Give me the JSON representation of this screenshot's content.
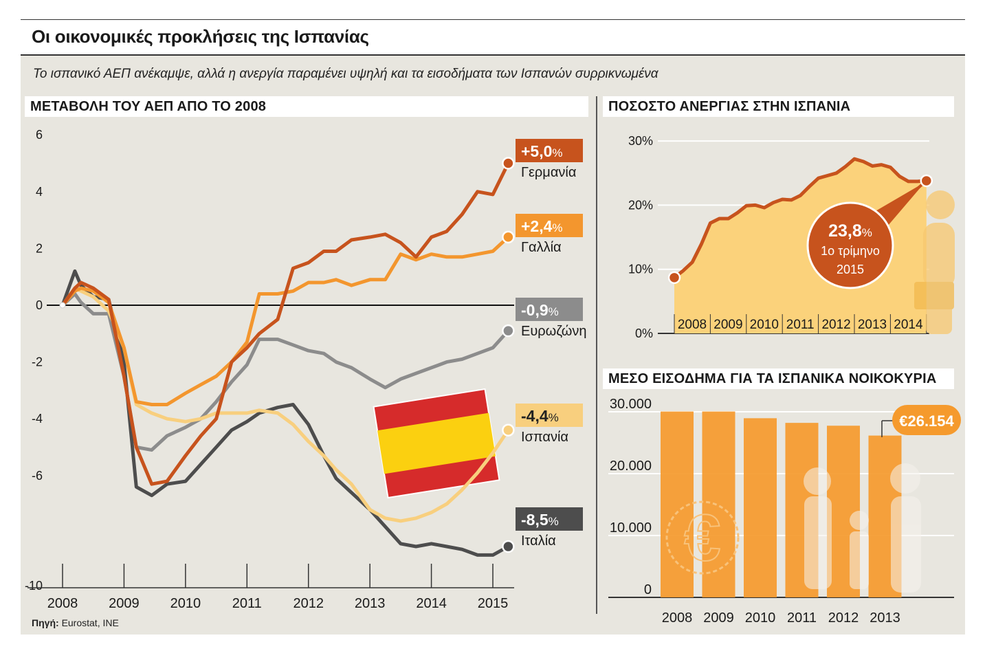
{
  "title": "Οι οικονομικές προκλήσεις της Ισπανίας",
  "subtitle": "Το ισπανικό ΑΕΠ ανέκαμψε, αλλά η ανεργία παραμένει υψηλή και τα εισοδήματα των Ισπανών συρρικνωμένα",
  "source_label": "Πηγή:",
  "source_text": "Eurostat, INE",
  "colors": {
    "germany": "#c7531d",
    "france": "#f3962e",
    "eurozone": "#8c8c8c",
    "spain": "#f8cf7e",
    "italy": "#4d4d4d",
    "bar": "#f59a2d",
    "area": "#fbd27b"
  },
  "chart_data": [
    {
      "type": "line",
      "title": "ΜΕΤΑΒΟΛΗ ΤΟΥ ΑΕΠ ΑΠΟ ΤΟ 2008",
      "x_ticks": [
        "2008",
        "2009",
        "2010",
        "2011",
        "2012",
        "2013",
        "2014",
        "2015"
      ],
      "y_ticks": [
        "6",
        "4",
        "2",
        "0",
        "-2",
        "-4",
        "-6",
        "-10"
      ],
      "ylim": [
        -10,
        6
      ],
      "x": [
        2008.0,
        2008.2,
        2008.3,
        2008.5,
        2008.75,
        2009.0,
        2009.2,
        2009.45,
        2009.7,
        2010.0,
        2010.25,
        2010.5,
        2010.75,
        2011.0,
        2011.2,
        2011.5,
        2011.75,
        2012.0,
        2012.25,
        2012.45,
        2012.7,
        2013.0,
        2013.25,
        2013.5,
        2013.75,
        2014.0,
        2014.25,
        2014.5,
        2014.75,
        2015.0,
        2015.25
      ],
      "series": [
        {
          "key": "germany",
          "name": "Γερμανία",
          "final_label": "+5,0",
          "unit": "%",
          "values": [
            0.0,
            0.6,
            0.8,
            0.6,
            0.2,
            -2.5,
            -5.0,
            -6.3,
            -6.2,
            -5.3,
            -4.6,
            -4.0,
            -2.0,
            -1.5,
            -1.0,
            -0.5,
            1.3,
            1.5,
            1.9,
            1.9,
            2.3,
            2.4,
            2.5,
            2.2,
            1.7,
            2.4,
            2.6,
            3.2,
            4.0,
            3.9,
            5.0
          ]
        },
        {
          "key": "france",
          "name": "Γαλλία",
          "final_label": "+2,4",
          "unit": "%",
          "values": [
            0.0,
            0.5,
            0.6,
            0.5,
            0.1,
            -1.5,
            -3.4,
            -3.5,
            -3.5,
            -3.1,
            -2.8,
            -2.5,
            -2.0,
            -1.3,
            0.4,
            0.4,
            0.5,
            0.8,
            0.8,
            0.9,
            0.7,
            0.9,
            0.9,
            1.8,
            1.6,
            1.8,
            1.7,
            1.7,
            1.8,
            1.9,
            2.4
          ]
        },
        {
          "key": "eurozone",
          "name": "Ευρωζώνη",
          "final_label": "-0,9",
          "unit": "%",
          "values": [
            0.0,
            0.4,
            0.1,
            -0.3,
            -0.3,
            -2.5,
            -5.0,
            -5.1,
            -4.6,
            -4.3,
            -4.0,
            -3.4,
            -2.7,
            -2.1,
            -1.2,
            -1.2,
            -1.4,
            -1.6,
            -1.7,
            -2.0,
            -2.2,
            -2.6,
            -2.9,
            -2.6,
            -2.4,
            -2.2,
            -2.0,
            -1.9,
            -1.7,
            -1.5,
            -0.9
          ]
        },
        {
          "key": "spain",
          "name": "Ισπανία",
          "final_label": "-4,4",
          "unit": "%",
          "values": [
            0.0,
            0.6,
            0.5,
            0.3,
            -0.2,
            -1.5,
            -3.5,
            -3.8,
            -4.0,
            -4.1,
            -4.0,
            -3.8,
            -3.8,
            -3.8,
            -3.7,
            -3.8,
            -4.2,
            -4.8,
            -5.3,
            -5.8,
            -6.3,
            -7.2,
            -7.5,
            -7.6,
            -7.5,
            -7.3,
            -7.0,
            -6.5,
            -5.9,
            -5.2,
            -4.4
          ]
        },
        {
          "key": "italy",
          "name": "Ιταλία",
          "final_label": "-8,5",
          "unit": "%",
          "values": [
            0.0,
            1.2,
            0.7,
            0.3,
            0.2,
            -2.0,
            -6.4,
            -6.7,
            -6.3,
            -6.2,
            -5.6,
            -5.0,
            -4.4,
            -4.1,
            -3.8,
            -3.6,
            -3.5,
            -4.2,
            -5.3,
            -6.1,
            -6.6,
            -7.2,
            -7.8,
            -8.4,
            -8.5,
            -8.4,
            -8.5,
            -8.6,
            -8.8,
            -8.8,
            -8.5
          ]
        }
      ]
    },
    {
      "type": "area",
      "title": "ΠΟΣΟΣΤΟ ΑΝΕΡΓΙΑΣ ΣΤΗΝ ΙΣΠΑΝΙΑ",
      "y_ticks": [
        "0%",
        "10%",
        "20%",
        "30%"
      ],
      "x_ticks": [
        "2008",
        "2009",
        "2010",
        "2011",
        "2012",
        "2013",
        "2014"
      ],
      "ylim": [
        0,
        30
      ],
      "x": [
        2008.0,
        2008.25,
        2008.5,
        2008.75,
        2009.0,
        2009.25,
        2009.5,
        2009.75,
        2010.0,
        2010.25,
        2010.5,
        2010.75,
        2011.0,
        2011.25,
        2011.5,
        2011.75,
        2012.0,
        2012.25,
        2012.5,
        2012.75,
        2013.0,
        2013.25,
        2013.5,
        2013.75,
        2014.0,
        2014.25,
        2014.5,
        2014.75,
        2015.0
      ],
      "values": [
        8.7,
        9.8,
        11.1,
        13.9,
        17.2,
        17.9,
        17.9,
        18.8,
        19.9,
        20.0,
        19.6,
        20.4,
        20.9,
        20.8,
        21.5,
        22.9,
        24.2,
        24.6,
        25.0,
        26.0,
        27.2,
        26.8,
        26.1,
        26.3,
        25.9,
        24.5,
        23.7,
        23.7,
        23.8
      ],
      "callout_value": "23,8",
      "callout_unit": "%",
      "callout_line1": "1ο τρίμηνο",
      "callout_line2": "2015"
    },
    {
      "type": "bar",
      "title": "ΜΕΣΟ ΕΙΣΟΔΗΜΑ ΓΙΑ ΤΑ ΙΣΠΑΝΙΚΑ ΝΟΙΚΟΚΥΡΙΑ",
      "categories": [
        "2008",
        "2009",
        "2010",
        "2011",
        "2012",
        "2013"
      ],
      "values": [
        30045,
        30045,
        28959,
        28206,
        27747,
        26154
      ],
      "y_ticks": [
        "0",
        "10.000",
        "20.000",
        "30.000"
      ],
      "ylim": [
        0,
        30000
      ],
      "callout": "€26.154"
    }
  ]
}
